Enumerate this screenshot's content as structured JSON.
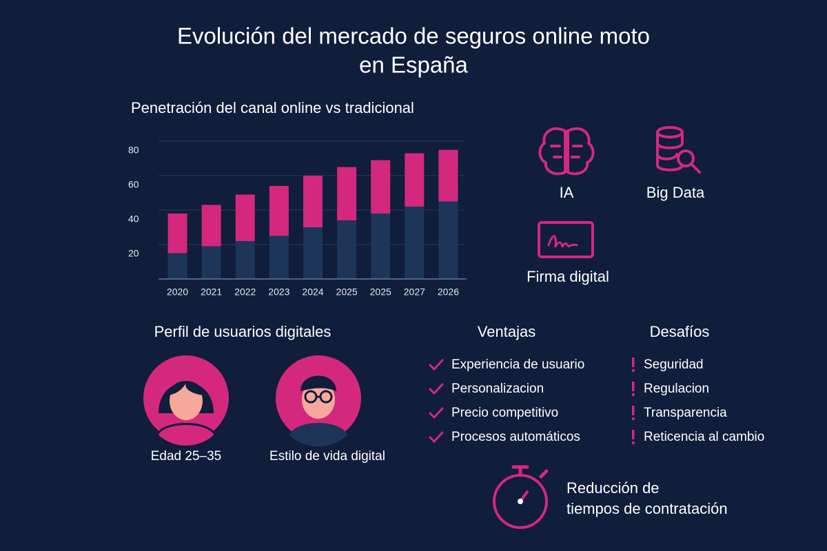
{
  "title": [
    "Evolución del mercado de seguros online moto",
    "en España"
  ],
  "chart_data": {
    "type": "bar",
    "stacked": true,
    "title": "Penetración del canal online vs tradicional",
    "categories": [
      "2020",
      "2021",
      "2022",
      "2023",
      "2024",
      "2025",
      "2025",
      "2027",
      "2026"
    ],
    "series": [
      {
        "color": "#1c3558",
        "values": [
          15,
          19,
          22,
          25,
          30,
          34,
          38,
          42,
          45
        ]
      },
      {
        "color": "#d4287f",
        "values": [
          23,
          24,
          27,
          29,
          30,
          31,
          31,
          31,
          30
        ]
      }
    ],
    "ylim": [
      0,
      80
    ],
    "yticks": [
      20,
      40,
      60,
      80
    ],
    "grid": true
  },
  "features": [
    "IA",
    "Big Data",
    "Firma digital"
  ],
  "profile": {
    "title": "Perfil de usuarios digitales",
    "users": [
      "Edad 25–35",
      "Estilo de vida digital"
    ]
  },
  "advantages": {
    "title": "Ventajas",
    "items": [
      "Experiencia de usuario",
      "Personalizacion",
      "Precio competitivo",
      "Procesos automáticos"
    ]
  },
  "challenges": {
    "title": "Desafíos",
    "items": [
      "Seguridad",
      "Regulacion",
      "Transparencia",
      "Reticencia al cambio"
    ]
  },
  "highlight": [
    "Reducción de",
    "tiempos de contratación"
  ]
}
